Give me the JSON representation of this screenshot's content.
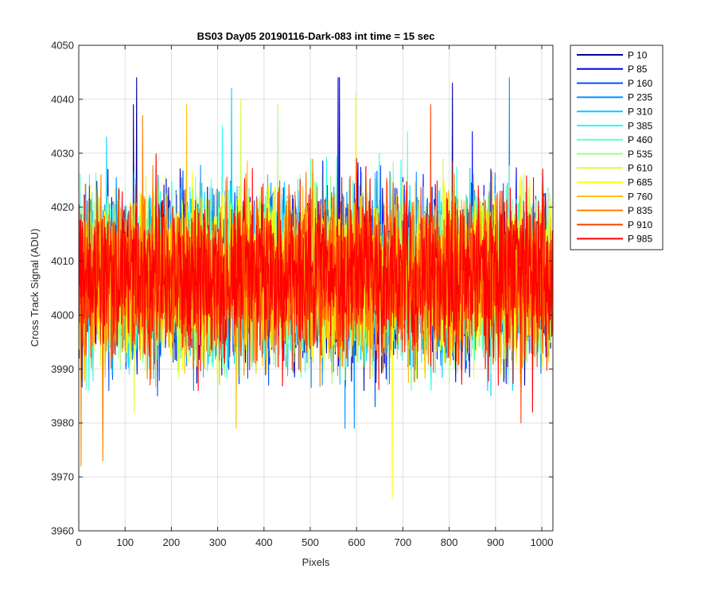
{
  "chart_data": {
    "type": "line",
    "title": "BS03 Day05 20190116-Dark-083 int time = 15 sec",
    "xlabel": "Pixels",
    "ylabel": "Cross Track Signal (ADU)",
    "xlim": [
      0,
      1024
    ],
    "ylim": [
      3960,
      4050
    ],
    "xticks": [
      0,
      100,
      200,
      300,
      400,
      500,
      600,
      700,
      800,
      900,
      1000
    ],
    "yticks": [
      3960,
      3970,
      3980,
      3990,
      4000,
      4010,
      4020,
      4030,
      4040,
      4050
    ],
    "grid": true,
    "legend_position": "outside-top-right",
    "noise_summary": {
      "mean": 4007,
      "typical_low": 3990,
      "typical_high": 4027,
      "n_points": 1024
    },
    "series": [
      {
        "name": "P 10",
        "color": "#00009F",
        "extremes": [
          [
            125,
            4044
          ],
          [
            118,
            4039
          ],
          [
            563,
            4044
          ],
          [
            807,
            4043
          ],
          [
            65,
            3990
          ]
        ]
      },
      {
        "name": "P 85",
        "color": "#0000F2",
        "extremes": [
          [
            560,
            4044
          ],
          [
            440,
            3995
          ],
          [
            850,
            4034
          ]
        ]
      },
      {
        "name": "P 160",
        "color": "#0050FF",
        "extremes": [
          [
            170,
            3985
          ],
          [
            410,
            3987
          ],
          [
            640,
            3983
          ]
        ]
      },
      {
        "name": "P 235",
        "color": "#0090FF",
        "extremes": [
          [
            930,
            4044
          ],
          [
            575,
            3979
          ],
          [
            595,
            3979
          ]
        ]
      },
      {
        "name": "P 310",
        "color": "#00CFFF",
        "extremes": [
          [
            330,
            4042
          ],
          [
            60,
            4033
          ],
          [
            890,
            3985
          ]
        ]
      },
      {
        "name": "P 385",
        "color": "#20FFEF",
        "extremes": [
          [
            310,
            4035
          ],
          [
            760,
            3990
          ]
        ]
      },
      {
        "name": "P 460",
        "color": "#60FFBF",
        "extremes": [
          [
            710,
            4034
          ],
          [
            220,
            3992
          ]
        ]
      },
      {
        "name": "P 535",
        "color": "#9FFF80",
        "extremes": [
          [
            430,
            4039
          ],
          [
            300,
            3982
          ]
        ]
      },
      {
        "name": "P 610",
        "color": "#CFFF40",
        "extremes": [
          [
            350,
            4040
          ],
          [
            120,
            3982
          ]
        ]
      },
      {
        "name": "P 685",
        "color": "#FFFF00",
        "extremes": [
          [
            677,
            3966
          ],
          [
            598,
            4041
          ]
        ]
      },
      {
        "name": "P 760",
        "color": "#FFC000",
        "extremes": [
          [
            233,
            4039
          ],
          [
            340,
            3979
          ]
        ]
      },
      {
        "name": "P 835",
        "color": "#FF8000",
        "extremes": [
          [
            5,
            3972
          ],
          [
            52,
            3973
          ],
          [
            138,
            4037
          ]
        ]
      },
      {
        "name": "P 910",
        "color": "#FF4000",
        "extremes": [
          [
            760,
            4039
          ],
          [
            955,
            3980
          ]
        ]
      },
      {
        "name": "P 985",
        "color": "#FF0000",
        "extremes": [
          [
            600,
            4029
          ],
          [
            980,
            3982
          ]
        ]
      }
    ]
  }
}
